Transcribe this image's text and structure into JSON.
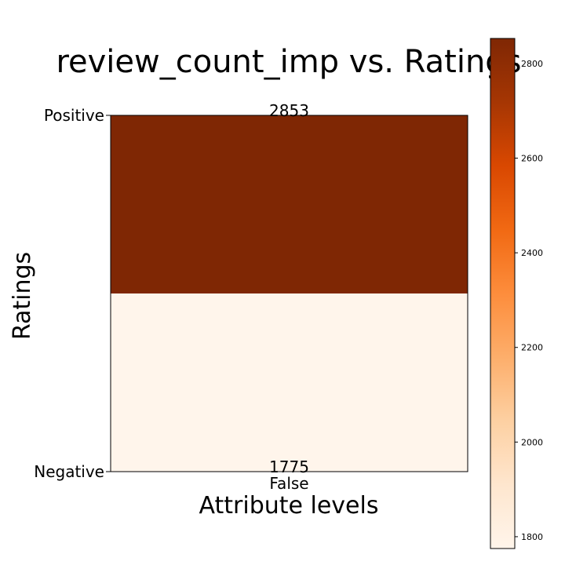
{
  "chart_data": {
    "type": "heatmap",
    "title": "review_count_imp vs. Ratings",
    "xlabel": "Attribute levels",
    "ylabel": "Ratings",
    "x_categories": [
      "False"
    ],
    "y_categories": [
      "Positive",
      "Negative"
    ],
    "values": [
      [
        2853
      ],
      [
        1775
      ]
    ],
    "annotations": [
      "2853",
      "1775"
    ],
    "colormap": "Oranges",
    "colorbar": {
      "range": [
        1775,
        2853
      ],
      "ticks": [
        1800,
        2000,
        2200,
        2400,
        2600,
        2800
      ],
      "tick_labels": [
        "1800",
        "2000",
        "2200",
        "2400",
        "2600",
        "2800"
      ]
    },
    "colors": {
      "low": "#fff5eb",
      "high": "#7f2704"
    }
  }
}
